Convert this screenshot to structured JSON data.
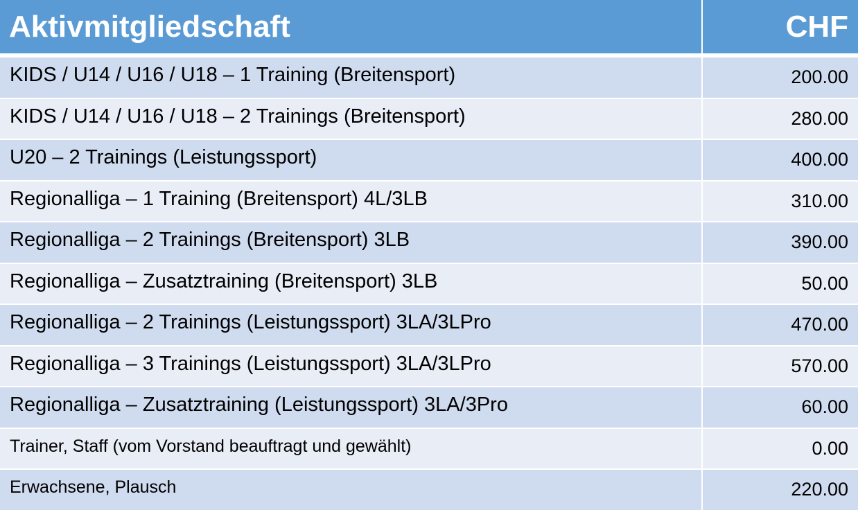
{
  "header": {
    "title": "Aktivmitgliedschaft",
    "currency": "CHF"
  },
  "colors": {
    "header_bg": "#5b9bd5",
    "row_dark": "#cfdbee",
    "row_light": "#e8edf6"
  },
  "rows": [
    {
      "name": "KIDS / U14 / U16 / U18 – 1 Training (Breitensport)",
      "price": "200.00"
    },
    {
      "name": "KIDS / U14 / U16 / U18 – 2 Trainings (Breitensport)",
      "price": "280.00"
    },
    {
      "name": "U20 – 2 Trainings (Leistungssport)",
      "price": "400.00"
    },
    {
      "name": "Regionalliga – 1 Training (Breitensport) 4L/3LB",
      "price": "310.00"
    },
    {
      "name": "Regionalliga – 2 Trainings (Breitensport) 3LB",
      "price": "390.00"
    },
    {
      "name": "Regionalliga – Zusatztraining (Breitensport) 3LB",
      "price": "50.00"
    },
    {
      "name": "Regionalliga – 2 Trainings (Leistungssport) 3LA/3LPro",
      "price": "470.00"
    },
    {
      "name": "Regionalliga – 3 Trainings (Leistungssport) 3LA/3LPro",
      "price": "570.00"
    },
    {
      "name": "Regionalliga – Zusatztraining (Leistungssport) 3LA/3Pro",
      "price": "60.00"
    },
    {
      "name": "Trainer, Staff (vom Vorstand beauftragt und gewählt)",
      "price": "0.00"
    },
    {
      "name": "Erwachsene, Plausch",
      "price": "220.00"
    }
  ]
}
